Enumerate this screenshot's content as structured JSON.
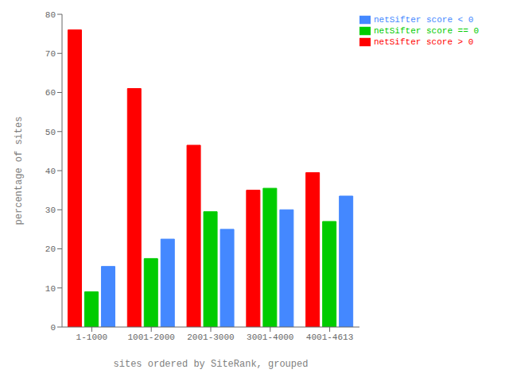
{
  "chart_data": {
    "type": "bar",
    "categories": [
      "1-1000",
      "1001-2000",
      "2001-3000",
      "3001-4000",
      "4001-4613"
    ],
    "series": [
      {
        "name": "netSifter score > 0",
        "color": "#ff0000",
        "values": [
          76,
          61,
          46.5,
          35,
          39.5
        ]
      },
      {
        "name": "netSifter score == 0",
        "color": "#00cc00",
        "values": [
          9,
          17.5,
          29.5,
          35.5,
          27
        ]
      },
      {
        "name": "netSifter score < 0",
        "color": "#4488ff",
        "values": [
          15.5,
          22.5,
          25,
          30,
          33.5
        ]
      }
    ],
    "xlabel": "sites ordered by SiteRank, grouped",
    "ylabel": "percentage of sites",
    "ylim": [
      0,
      80
    ],
    "yticks": [
      0,
      10,
      20,
      30,
      40,
      50,
      60,
      70,
      80
    ],
    "grid": false,
    "legend": "upper right"
  }
}
